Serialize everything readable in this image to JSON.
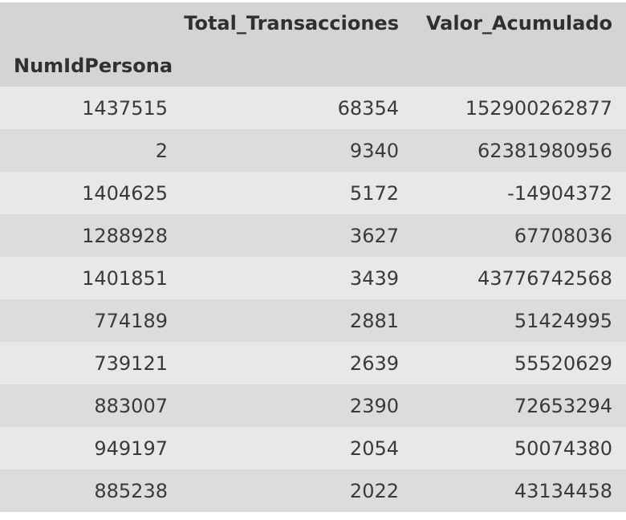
{
  "table": {
    "columns": [
      "",
      "Total_Transacciones",
      "Valor_Acumulado"
    ],
    "index_name": "NumIdPersona",
    "rows": [
      {
        "NumIdPersona": "1437515",
        "Total_Transacciones": "68354",
        "Valor_Acumulado": "152900262877"
      },
      {
        "NumIdPersona": "2",
        "Total_Transacciones": "9340",
        "Valor_Acumulado": "62381980956"
      },
      {
        "NumIdPersona": "1404625",
        "Total_Transacciones": "5172",
        "Valor_Acumulado": "-14904372"
      },
      {
        "NumIdPersona": "1288928",
        "Total_Transacciones": "3627",
        "Valor_Acumulado": "67708036"
      },
      {
        "NumIdPersona": "1401851",
        "Total_Transacciones": "3439",
        "Valor_Acumulado": "43776742568"
      },
      {
        "NumIdPersona": "774189",
        "Total_Transacciones": "2881",
        "Valor_Acumulado": "51424995"
      },
      {
        "NumIdPersona": "739121",
        "Total_Transacciones": "2639",
        "Valor_Acumulado": "55520629"
      },
      {
        "NumIdPersona": "883007",
        "Total_Transacciones": "2390",
        "Valor_Acumulado": "72653294"
      },
      {
        "NumIdPersona": "949197",
        "Total_Transacciones": "2054",
        "Valor_Acumulado": "50074380"
      },
      {
        "NumIdPersona": "885238",
        "Total_Transacciones": "2022",
        "Valor_Acumulado": "43134458"
      }
    ]
  }
}
